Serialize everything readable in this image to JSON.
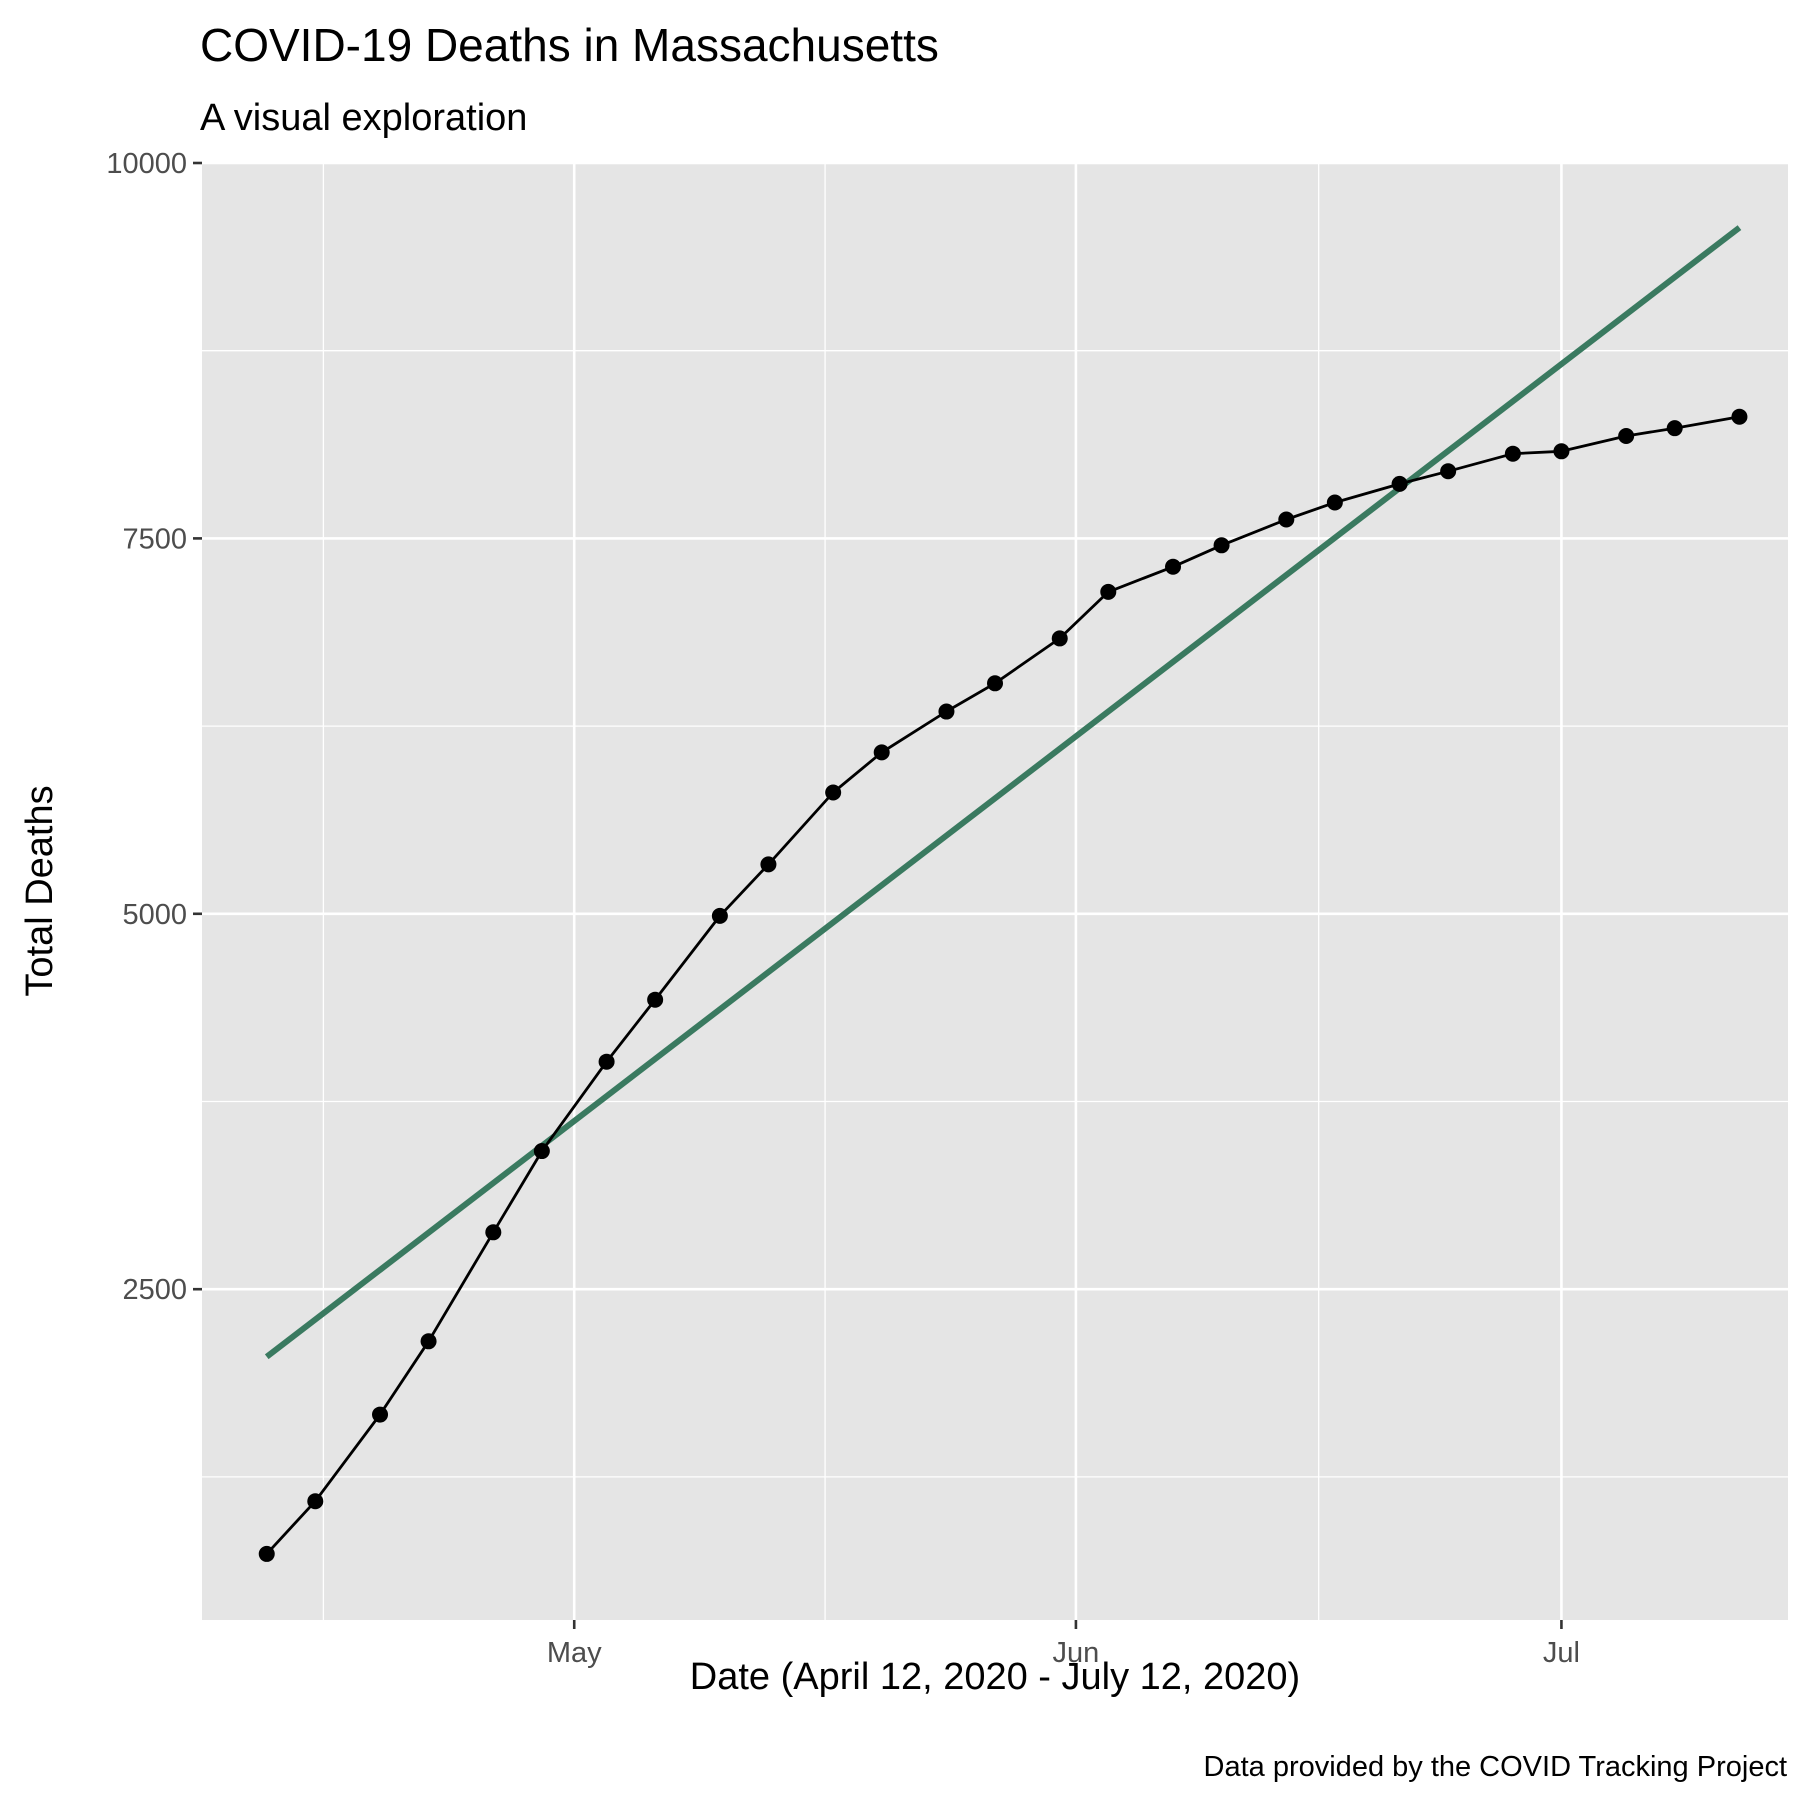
{
  "chart_data": {
    "type": "line",
    "title": "COVID-19 Deaths in Massachusetts",
    "subtitle": "A visual exploration",
    "xlabel": "Date (April 12, 2020 - July 12, 2020)",
    "ylabel": "Total Deaths",
    "caption": "Data provided by the COVID Tracking Project",
    "x_type": "date",
    "xlim": [
      "2020-04-08",
      "2020-07-15"
    ],
    "ylim": [
      0,
      10000
    ],
    "x_ticks": [
      {
        "date": "2020-05-01",
        "label": "May"
      },
      {
        "date": "2020-06-01",
        "label": "Jun"
      },
      {
        "date": "2020-07-01",
        "label": "Jul"
      }
    ],
    "y_ticks": [
      {
        "value": 2500,
        "label": "2500"
      },
      {
        "value": 5000,
        "label": "5000"
      },
      {
        "value": 7500,
        "label": "7500"
      },
      {
        "value": 10000,
        "label": "10000"
      }
    ],
    "grid": true,
    "legend": "none",
    "colors": {
      "panel": "#e5e5e5",
      "grid": "#ffffff",
      "series": "#000000",
      "trend": "#3a7a60"
    },
    "series": [
      {
        "type": "line+points",
        "x": [
          "2020-04-12",
          "2020-04-15",
          "2020-04-19",
          "2020-04-22",
          "2020-04-26",
          "2020-04-29",
          "2020-05-03",
          "2020-05-06",
          "2020-05-10",
          "2020-05-13",
          "2020-05-17",
          "2020-05-20",
          "2020-05-24",
          "2020-05-27",
          "2020-05-31",
          "2020-06-03",
          "2020-06-07",
          "2020-06-10",
          "2020-06-14",
          "2020-06-17",
          "2020-06-21",
          "2020-06-24",
          "2020-06-28",
          "2020-07-01",
          "2020-07-05",
          "2020-07-08",
          "2020-07-12"
        ],
        "values": [
          737,
          1088,
          1665,
          2153,
          2879,
          3420,
          4015,
          4428,
          4986,
          5329,
          5808,
          6075,
          6347,
          6535,
          6834,
          7144,
          7311,
          7454,
          7626,
          7739,
          7863,
          7947,
          8064,
          8080,
          8182,
          8234,
          8310
        ]
      },
      {
        "type": "trend",
        "x": [
          "2020-04-12",
          "2020-07-12"
        ],
        "values": [
          2050,
          9570
        ]
      }
    ]
  }
}
